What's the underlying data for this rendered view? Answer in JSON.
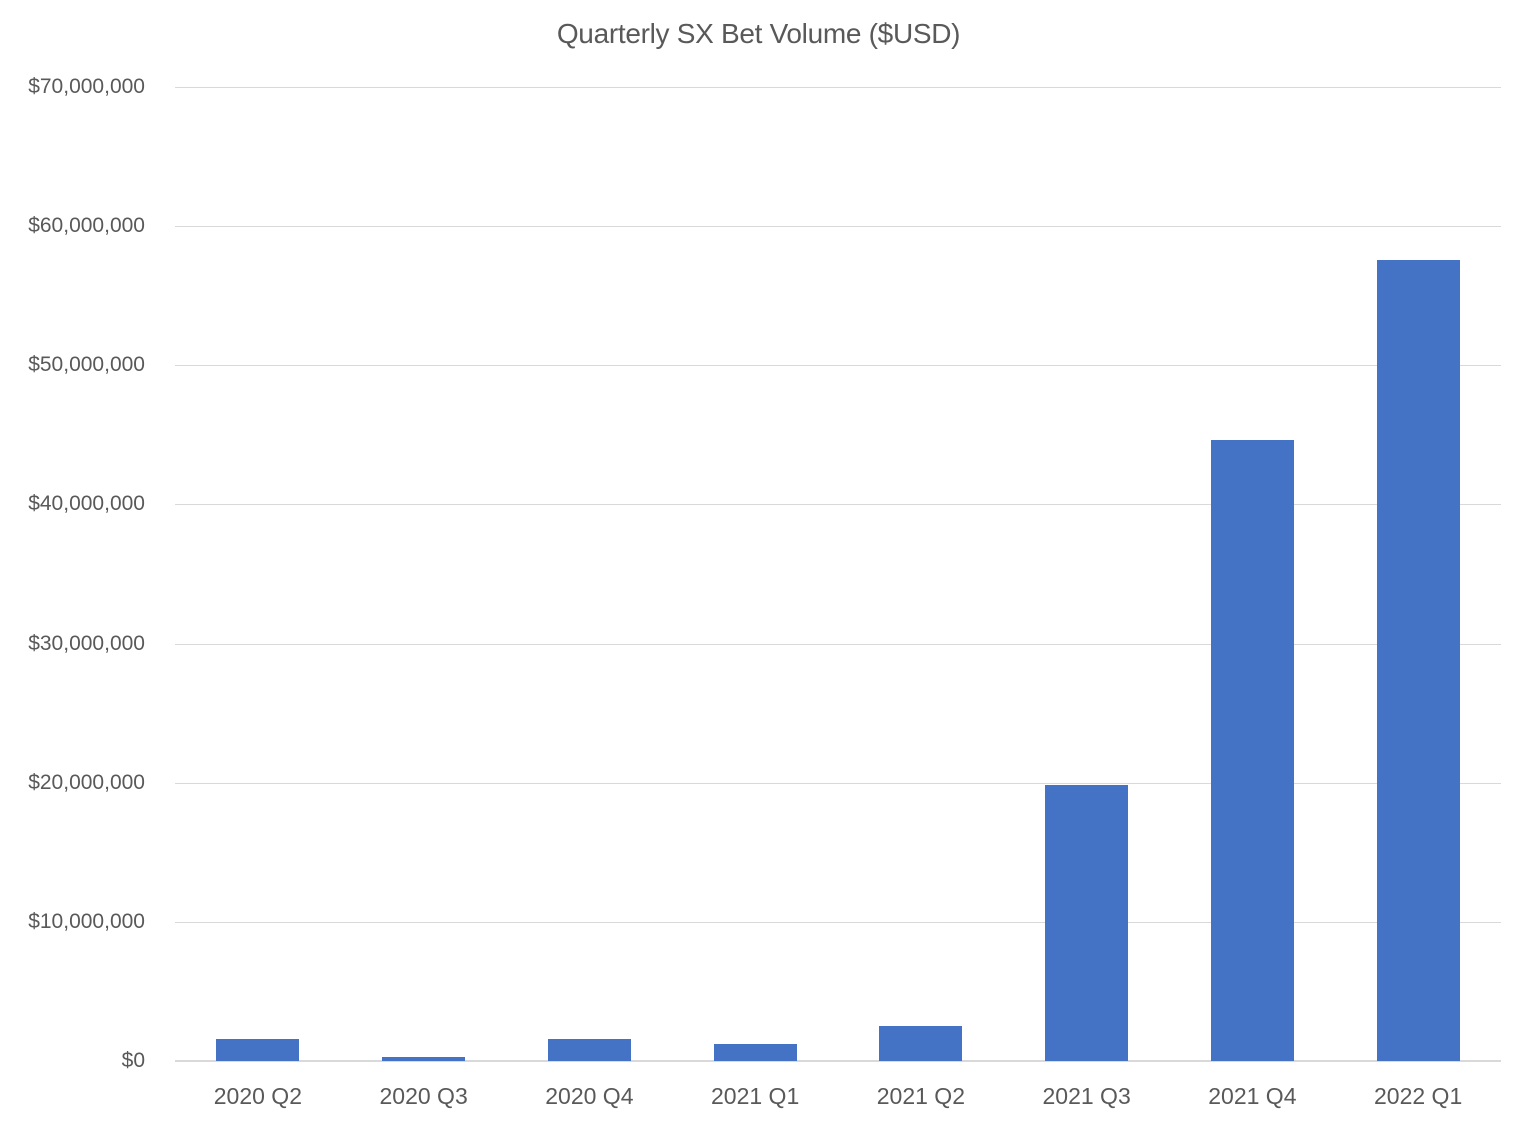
{
  "chart_data": {
    "type": "bar",
    "title": "Quarterly SX Bet Volume ($USD)",
    "xlabel": "",
    "ylabel": "",
    "categories": [
      "2020 Q2",
      "2020 Q3",
      "2020 Q4",
      "2021 Q1",
      "2021 Q2",
      "2021 Q3",
      "2021 Q4",
      "2022 Q1"
    ],
    "values": [
      1600000,
      300000,
      1600000,
      1200000,
      2500000,
      19800000,
      44600000,
      57600000
    ],
    "ylim": [
      0,
      70000000
    ],
    "yticks": [
      0,
      10000000,
      20000000,
      30000000,
      40000000,
      50000000,
      60000000,
      70000000
    ],
    "ytick_labels": [
      "$0",
      "$10,000,000",
      "$20,000,000",
      "$30,000,000",
      "$40,000,000",
      "$50,000,000",
      "$60,000,000",
      "$70,000,000"
    ],
    "grid": true,
    "legend": null,
    "bar_color": "#4472c4",
    "grid_color": "#d9d9d9",
    "text_color": "#595959"
  }
}
